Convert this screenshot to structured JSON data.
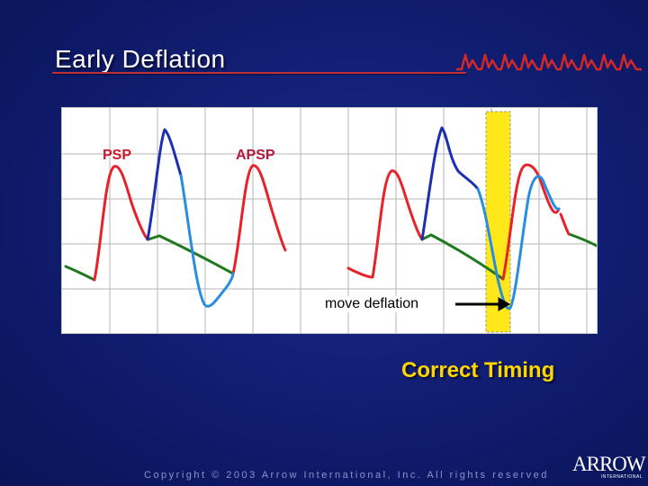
{
  "slide": {
    "title": "Early Deflation",
    "copyright": "Copyright © 2003 Arrow International, Inc.  All rights reserved",
    "correct_timing": "Correct Timing"
  },
  "diagram": {
    "labels": {
      "psp": "PSP",
      "apsp": "APSP",
      "move_deflation": "move deflation"
    },
    "colors": {
      "background": "#101c6e",
      "title_rule": "#c0303a",
      "psp_curve": "#e8222a",
      "augmented_curve": "#1c2fb0",
      "deflation_curve": "#2a8ee0",
      "diastolic_curve": "#1f7a1f",
      "highlight": "#ffe81a",
      "callout": "#ffd600"
    }
  },
  "logo": {
    "name": "ARROW",
    "subtitle": "INTERNATIONAL"
  }
}
